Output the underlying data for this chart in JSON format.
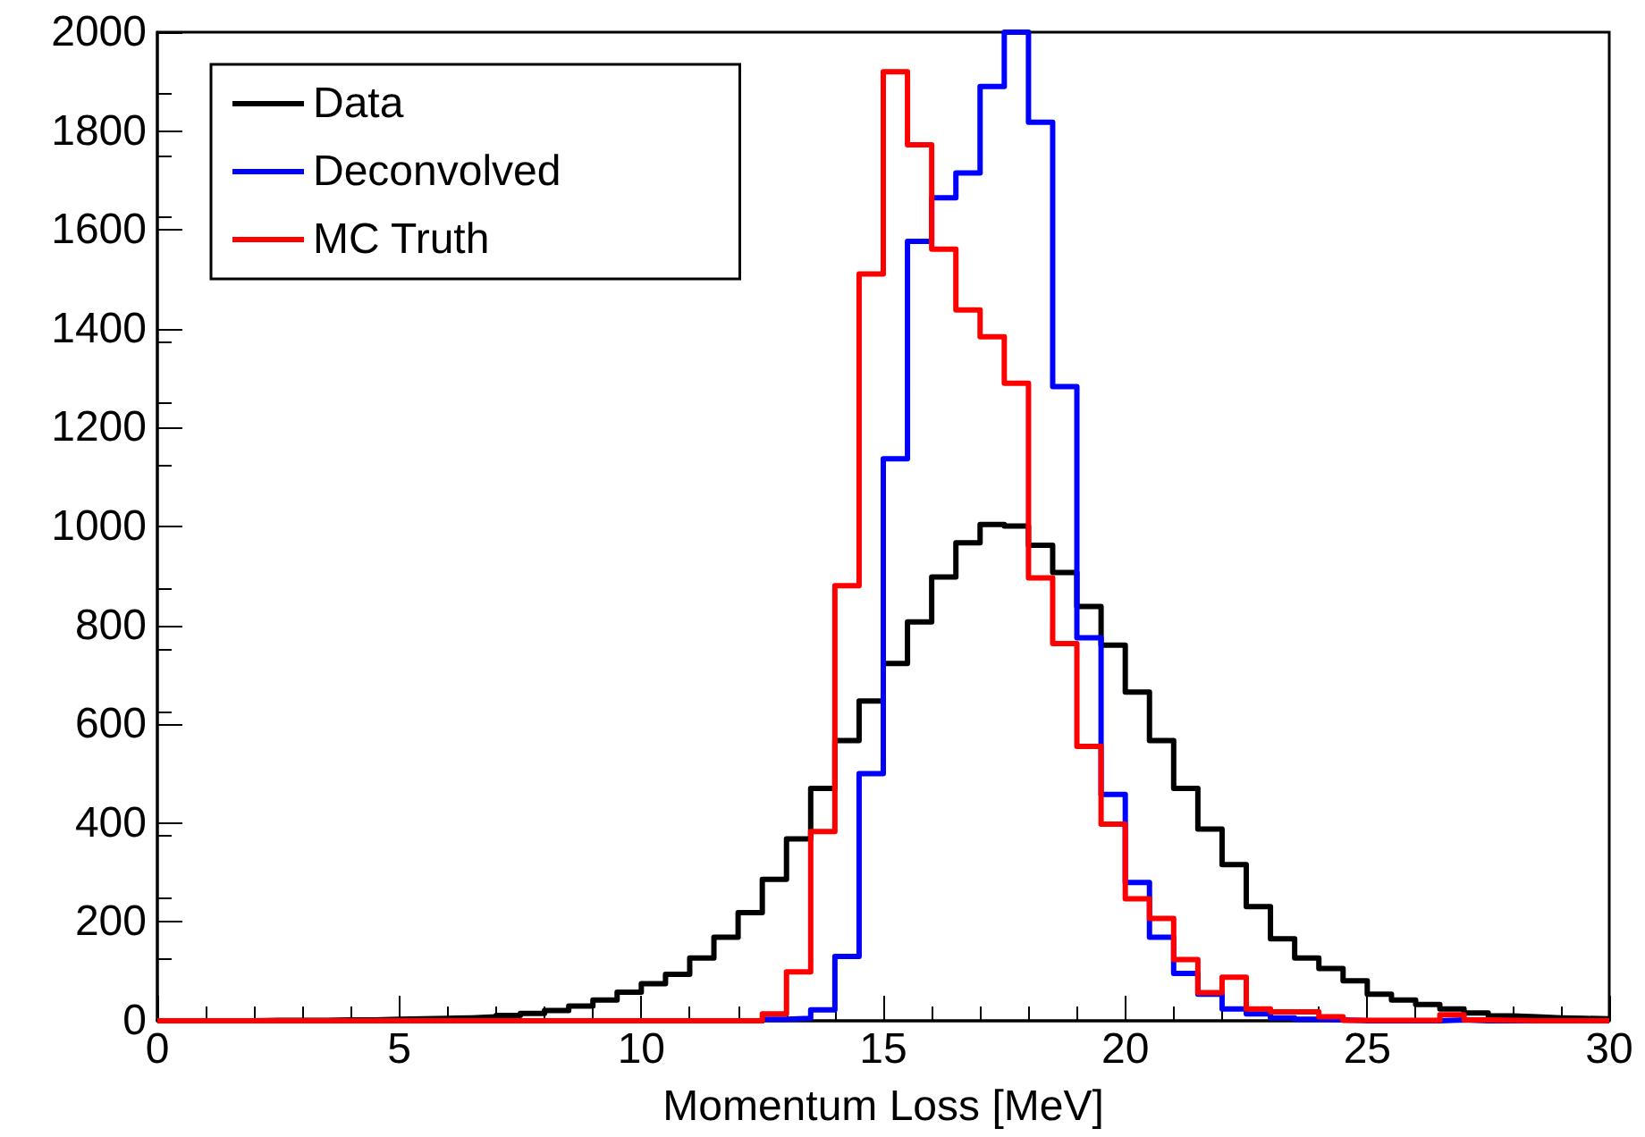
{
  "chart_data": {
    "type": "histogram",
    "xlabel": "Momentum Loss [MeV]",
    "bins": [
      0,
      0.5,
      1,
      1.5,
      2,
      2.5,
      3,
      3.5,
      4,
      4.5,
      5,
      5.5,
      6,
      6.5,
      7,
      7.5,
      8,
      8.5,
      9,
      9.5,
      10,
      10.5,
      11,
      11.5,
      12,
      12.5,
      13,
      13.5,
      14,
      14.5,
      15,
      15.5,
      16,
      16.5,
      17,
      17.5,
      18,
      18.5,
      19,
      19.5,
      20,
      20.5,
      21,
      21.5,
      22,
      22.5,
      23,
      23.5,
      24,
      24.5,
      25,
      25.5,
      26,
      26.5,
      27,
      27.5,
      28,
      28.5,
      29,
      29.5,
      30
    ],
    "series": [
      {
        "name": "Data",
        "color": "#000000",
        "values": [
          0,
          0,
          0,
          0,
          1,
          1,
          1,
          2,
          2,
          3,
          4,
          5,
          6,
          8,
          11,
          15,
          21,
          30,
          42,
          58,
          75,
          94,
          127,
          169,
          219,
          286,
          368,
          470,
          567,
          647,
          723,
          807,
          898,
          967,
          1004,
          1001,
          962,
          907,
          838,
          760,
          665,
          567,
          470,
          388,
          316,
          231,
          166,
          127,
          106,
          81,
          54,
          42,
          33,
          24,
          16,
          10,
          8,
          6,
          5,
          4
        ]
      },
      {
        "name": "Deconvolved",
        "color": "#0000ff",
        "values": [
          0,
          0,
          0,
          0,
          0,
          0,
          0,
          0,
          0,
          0,
          0,
          0,
          0,
          0,
          0,
          0,
          0,
          0,
          0,
          0,
          0,
          0,
          0,
          0,
          0,
          3,
          5,
          22,
          130,
          500,
          1137,
          1577,
          1665,
          1715,
          1890,
          2000,
          1818,
          1283,
          775,
          458,
          280,
          169,
          96,
          54,
          24,
          14,
          6,
          3,
          2,
          0,
          0,
          0,
          0,
          2,
          0,
          0,
          0,
          0,
          0,
          0
        ]
      },
      {
        "name": "MC Truth",
        "color": "#ff0000",
        "values": [
          0,
          0,
          0,
          0,
          0,
          0,
          0,
          0,
          0,
          0,
          0,
          0,
          0,
          0,
          0,
          0,
          0,
          0,
          0,
          0,
          0,
          0,
          0,
          0,
          0,
          14,
          99,
          383,
          880,
          1511,
          1920,
          1772,
          1561,
          1438,
          1384,
          1290,
          896,
          763,
          555,
          398,
          247,
          207,
          124,
          57,
          88,
          24,
          18,
          18,
          8,
          1,
          1,
          1,
          1,
          12,
          2,
          1,
          0,
          0,
          0,
          0
        ]
      }
    ],
    "xlim": [
      0,
      30
    ],
    "xticks": [
      0,
      5,
      10,
      15,
      20,
      25,
      30
    ],
    "ylim": [
      0,
      2000
    ],
    "yticks": [
      0,
      200,
      400,
      600,
      800,
      1000,
      1200,
      1400,
      1600,
      1800,
      2000
    ],
    "grid": false,
    "legend": "top left"
  }
}
